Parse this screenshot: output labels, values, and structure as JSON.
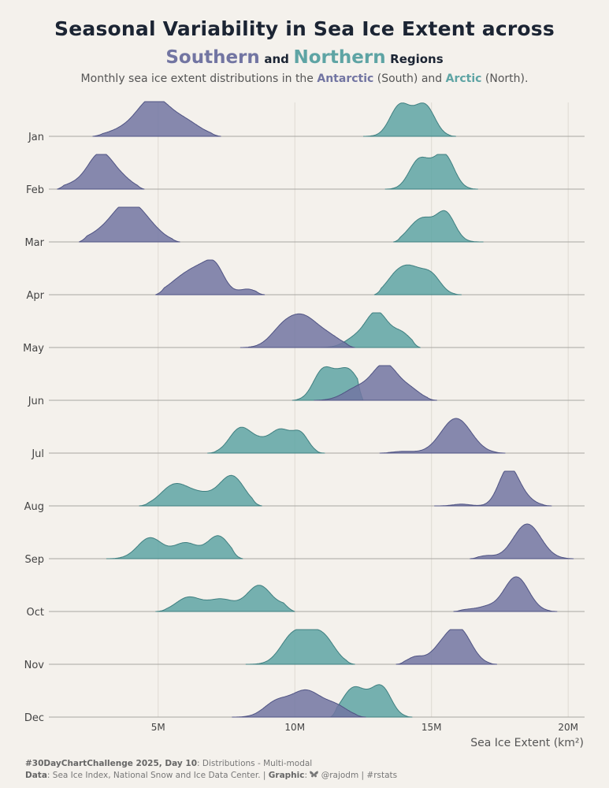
{
  "title": "Seasonal Variability in Sea Ice Extent across",
  "subtitle": {
    "southern": "Southern",
    "and": "and",
    "northern": "Northern",
    "regions": "Regions"
  },
  "description": {
    "prefix": "Monthly sea ice extent distributions in the ",
    "antarctic": "Antarctic",
    "south": " (South) and ",
    "arctic": "Arctic",
    "north": " (North)."
  },
  "caption": {
    "line1_bold": "#30DayChartChallenge 2025, Day 10",
    "line1_rest": ": Distributions - Multi-modal",
    "line2_data_label": "Data",
    "line2_data": ": Sea Ice Index, National Snow and Ice Data Center. | ",
    "line2_graphic_label": "Graphic",
    "line2_graphic_sep": ": ",
    "line2_butterfly_icon": "butterfly-icon",
    "line2_handle": " @rajodm | #rstats"
  },
  "colors": {
    "southern": "#7275a2",
    "northern": "#5ea4a4",
    "background": "#f4f1ec"
  },
  "chart_data": {
    "type": "ridgeline-density",
    "xlabel": "Sea Ice Extent (km²)",
    "xlim": [
      1000000,
      20600000
    ],
    "xticks": [
      5000000,
      10000000,
      15000000,
      20000000
    ],
    "xtick_labels": [
      "5M",
      "10M",
      "15M",
      "20M"
    ],
    "months": [
      "Jan",
      "Feb",
      "Mar",
      "Apr",
      "May",
      "Jun",
      "Jul",
      "Aug",
      "Sep",
      "Oct",
      "Nov",
      "Dec"
    ],
    "series": [
      {
        "name": "Southern",
        "region": "Antarctic",
        "ranges": [
          [
            2600000,
            7300000
          ],
          [
            1300000,
            4500000
          ],
          [
            2100000,
            5800000
          ],
          [
            4900000,
            8900000
          ],
          [
            8000000,
            12200000
          ],
          [
            10700000,
            15200000
          ],
          [
            13100000,
            17700000
          ],
          [
            15100000,
            19400000
          ],
          [
            16400000,
            20200000
          ],
          [
            15800000,
            19600000
          ],
          [
            13700000,
            17400000
          ],
          [
            7700000,
            12600000
          ]
        ],
        "peaks": [
          [
            [
              4800000,
              1.0,
              0.55
            ],
            [
              5900000,
              0.45,
              0.6
            ],
            [
              3800000,
              0.2,
              0.6
            ]
          ],
          [
            [
              2900000,
              1.0,
              0.45
            ],
            [
              3700000,
              0.25,
              0.4
            ],
            [
              2000000,
              0.15,
              0.5
            ]
          ],
          [
            [
              3900000,
              1.0,
              0.55
            ],
            [
              4700000,
              0.3,
              0.5
            ],
            [
              3000000,
              0.25,
              0.6
            ]
          ],
          [
            [
              6700000,
              0.75,
              0.55
            ],
            [
              7100000,
              0.35,
              0.3
            ],
            [
              5800000,
              0.35,
              0.5
            ],
            [
              8300000,
              0.15,
              0.3
            ]
          ],
          [
            [
              10300000,
              0.85,
              0.55
            ],
            [
              9500000,
              0.4,
              0.45
            ],
            [
              11300000,
              0.25,
              0.45
            ]
          ],
          [
            [
              13300000,
              1.0,
              0.45
            ],
            [
              14200000,
              0.3,
              0.4
            ],
            [
              12300000,
              0.35,
              0.5
            ]
          ],
          [
            [
              15900000,
              1.0,
              0.55
            ],
            [
              14000000,
              0.05,
              0.4
            ]
          ],
          [
            [
              17800000,
              1.0,
              0.35
            ],
            [
              18300000,
              0.25,
              0.4
            ],
            [
              16100000,
              0.05,
              0.3
            ]
          ],
          [
            [
              18500000,
              1.0,
              0.5
            ],
            [
              17000000,
              0.08,
              0.3
            ]
          ],
          [
            [
              18100000,
              1.0,
              0.45
            ],
            [
              17000000,
              0.12,
              0.35
            ],
            [
              16300000,
              0.05,
              0.3
            ]
          ],
          [
            [
              16000000,
              1.0,
              0.45
            ],
            [
              14400000,
              0.2,
              0.3
            ],
            [
              15300000,
              0.35,
              0.4
            ]
          ],
          [
            [
              10400000,
              0.75,
              0.55
            ],
            [
              9300000,
              0.4,
              0.45
            ],
            [
              11500000,
              0.3,
              0.45
            ]
          ]
        ]
      },
      {
        "name": "Northern",
        "region": "Arctic",
        "ranges": [
          [
            12500000,
            15900000
          ],
          [
            13300000,
            16700000
          ],
          [
            13600000,
            16900000
          ],
          [
            12900000,
            16100000
          ],
          [
            10800000,
            14600000
          ],
          [
            9900000,
            12500000
          ],
          [
            6800000,
            11100000
          ],
          [
            4300000,
            8800000
          ],
          [
            3100000,
            8100000
          ],
          [
            4900000,
            10000000
          ],
          [
            8200000,
            12200000
          ],
          [
            11300000,
            14300000
          ]
        ],
        "peaks": [
          [
            [
              13800000,
              0.75,
              0.35
            ],
            [
              14800000,
              0.75,
              0.35
            ],
            [
              14300000,
              0.35,
              0.4
            ]
          ],
          [
            [
              14500000,
              0.7,
              0.35
            ],
            [
              15500000,
              0.85,
              0.35
            ],
            [
              15000000,
              0.35,
              0.4
            ]
          ],
          [
            [
              14700000,
              0.6,
              0.35
            ],
            [
              15500000,
              0.85,
              0.35
            ],
            [
              14200000,
              0.2,
              0.3
            ]
          ],
          [
            [
              14200000,
              0.75,
              0.45
            ],
            [
              15000000,
              0.5,
              0.35
            ],
            [
              13600000,
              0.3,
              0.35
            ]
          ],
          [
            [
              13000000,
              1.0,
              0.4
            ],
            [
              13900000,
              0.4,
              0.35
            ],
            [
              12200000,
              0.25,
              0.4
            ]
          ],
          [
            [
              11000000,
              0.75,
              0.35
            ],
            [
              12000000,
              0.75,
              0.4
            ],
            [
              11500000,
              0.3,
              0.4
            ]
          ],
          [
            [
              8000000,
              0.7,
              0.4
            ],
            [
              9500000,
              0.6,
              0.35
            ],
            [
              10200000,
              0.55,
              0.3
            ],
            [
              8800000,
              0.3,
              0.4
            ]
          ],
          [
            [
              5600000,
              0.6,
              0.5
            ],
            [
              7700000,
              0.85,
              0.45
            ],
            [
              6600000,
              0.3,
              0.5
            ]
          ],
          [
            [
              4700000,
              0.6,
              0.45
            ],
            [
              7200000,
              0.65,
              0.4
            ],
            [
              6000000,
              0.45,
              0.45
            ]
          ],
          [
            [
              6100000,
              0.4,
              0.45
            ],
            [
              8700000,
              0.75,
              0.45
            ],
            [
              7300000,
              0.35,
              0.5
            ],
            [
              9700000,
              0.15,
              0.3
            ]
          ],
          [
            [
              9900000,
              0.75,
              0.45
            ],
            [
              11000000,
              0.8,
              0.45
            ],
            [
              10400000,
              0.3,
              0.4
            ]
          ],
          [
            [
              12100000,
              0.75,
              0.4
            ],
            [
              13200000,
              0.75,
              0.35
            ],
            [
              12700000,
              0.3,
              0.4
            ]
          ]
        ]
      }
    ]
  }
}
